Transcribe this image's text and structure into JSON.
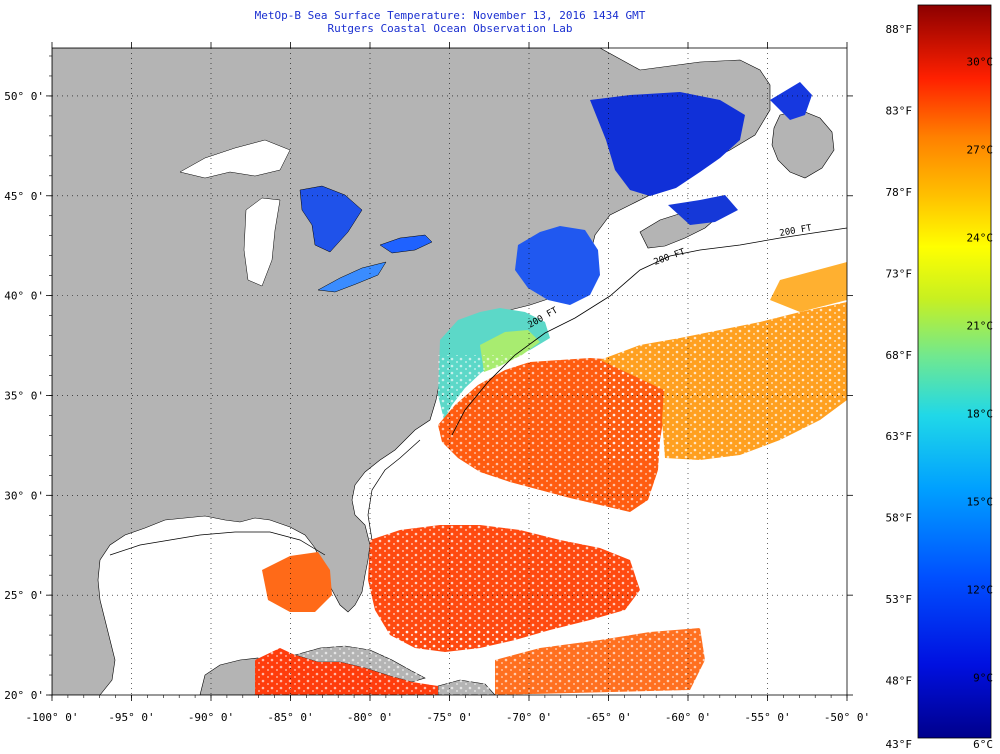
{
  "title": {
    "line1": "MetOp-B Sea Surface Temperature:  November 13, 2016 1434 GMT",
    "line2": "Rutgers Coastal Ocean Observation Lab"
  },
  "axes": {
    "lon_ticks": [
      "-100° 0'",
      "-95° 0'",
      "-90° 0'",
      "-85° 0'",
      "-80° 0'",
      "-75° 0'",
      "-70° 0'",
      "-65° 0'",
      "-60° 0'",
      "-55° 0'",
      "-50° 0'"
    ],
    "lon_values": [
      -100,
      -95,
      -90,
      -85,
      -80,
      -75,
      -70,
      -65,
      -60,
      -55,
      -50
    ],
    "lat_ticks": [
      "20° 0'",
      "25° 0'",
      "30° 0'",
      "35° 0'",
      "40° 0'",
      "45° 0'",
      "50° 0'"
    ],
    "lat_values": [
      20,
      25,
      30,
      35,
      40,
      45,
      50
    ]
  },
  "colorbar": {
    "fahrenheit": [
      "88°F",
      "83°F",
      "78°F",
      "73°F",
      "68°F",
      "63°F",
      "58°F",
      "53°F",
      "48°F",
      "43°F"
    ],
    "celsius": [
      "30°C",
      "27°C",
      "24°C",
      "21°C",
      "18°C",
      "15°C",
      "12°C",
      "9°C",
      "6°C"
    ]
  },
  "contour_labels": [
    "200 FT",
    "200 FT",
    "200 FT"
  ],
  "colors": {
    "land": "#b4b4b4",
    "no_data": "#ffffff",
    "scale_low": "#00008c",
    "scale_high": "#8c0000"
  }
}
